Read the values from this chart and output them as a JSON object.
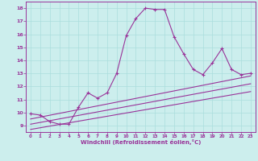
{
  "title": "",
  "xlabel": "Windchill (Refroidissement éolien,°C)",
  "ylabel": "",
  "background_color": "#cceeed",
  "line_color": "#993399",
  "xlim": [
    -0.5,
    23.5
  ],
  "ylim": [
    8.5,
    18.5
  ],
  "xticks": [
    0,
    1,
    2,
    3,
    4,
    5,
    6,
    7,
    8,
    9,
    10,
    11,
    12,
    13,
    14,
    15,
    16,
    17,
    18,
    19,
    20,
    21,
    22,
    23
  ],
  "yticks": [
    9,
    10,
    11,
    12,
    13,
    14,
    15,
    16,
    17,
    18
  ],
  "grid_color": "#aadddd",
  "line1_x": [
    0,
    1,
    2,
    3,
    4,
    5,
    6,
    7,
    8,
    9,
    10,
    11,
    12,
    13,
    14,
    15,
    16,
    17,
    18,
    19,
    20,
    21,
    22,
    23
  ],
  "line1_y": [
    9.9,
    9.8,
    9.3,
    9.1,
    9.1,
    10.4,
    11.5,
    11.1,
    11.5,
    13.0,
    15.9,
    17.2,
    18.0,
    17.9,
    17.9,
    15.8,
    14.5,
    13.3,
    12.9,
    13.8,
    14.9,
    13.3,
    12.9,
    13.0
  ],
  "line2_x": [
    0,
    23
  ],
  "line2_y": [
    9.5,
    12.8
  ],
  "line3_x": [
    0,
    23
  ],
  "line3_y": [
    9.1,
    12.2
  ],
  "line4_x": [
    0,
    23
  ],
  "line4_y": [
    8.7,
    11.6
  ]
}
